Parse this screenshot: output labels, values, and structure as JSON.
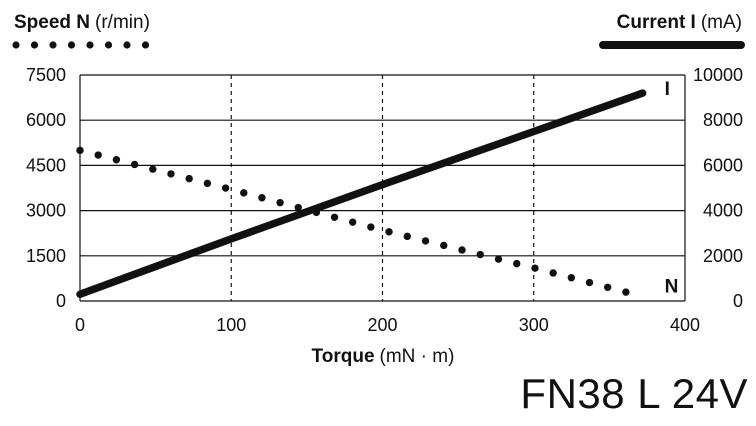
{
  "legend": {
    "speed": {
      "label_bold": "Speed N",
      "label_unit": "(r/min)"
    },
    "current": {
      "label_bold": "Current I",
      "label_unit": "(mA)"
    }
  },
  "model": "FN38 L 24V",
  "chart_data": {
    "type": "line",
    "title": "",
    "x": {
      "label_bold": "Torque",
      "label_unit": "(mN · m)",
      "lim": [
        0,
        400
      ],
      "ticks": [
        0,
        100,
        200,
        300,
        400
      ]
    },
    "y_left": {
      "lim": [
        0,
        7500
      ],
      "ticks": [
        0,
        1500,
        3000,
        4500,
        6000,
        7500
      ]
    },
    "y_right": {
      "lim": [
        0,
        10000
      ],
      "ticks": [
        0,
        2000,
        4000,
        6000,
        8000,
        10000
      ]
    },
    "grid": {
      "horizontal": "solid",
      "vertical": "dashed"
    },
    "series": [
      {
        "name": "N",
        "axis": "left",
        "style": "dotted",
        "x": [
          0,
          100,
          200,
          300,
          372
        ],
        "y": [
          5000,
          3700,
          2350,
          1100,
          150
        ]
      },
      {
        "name": "I",
        "axis": "right",
        "style": "solid",
        "x": [
          0,
          100,
          200,
          300,
          372
        ],
        "y": [
          300,
          2750,
          5150,
          7500,
          9200
        ]
      }
    ]
  }
}
